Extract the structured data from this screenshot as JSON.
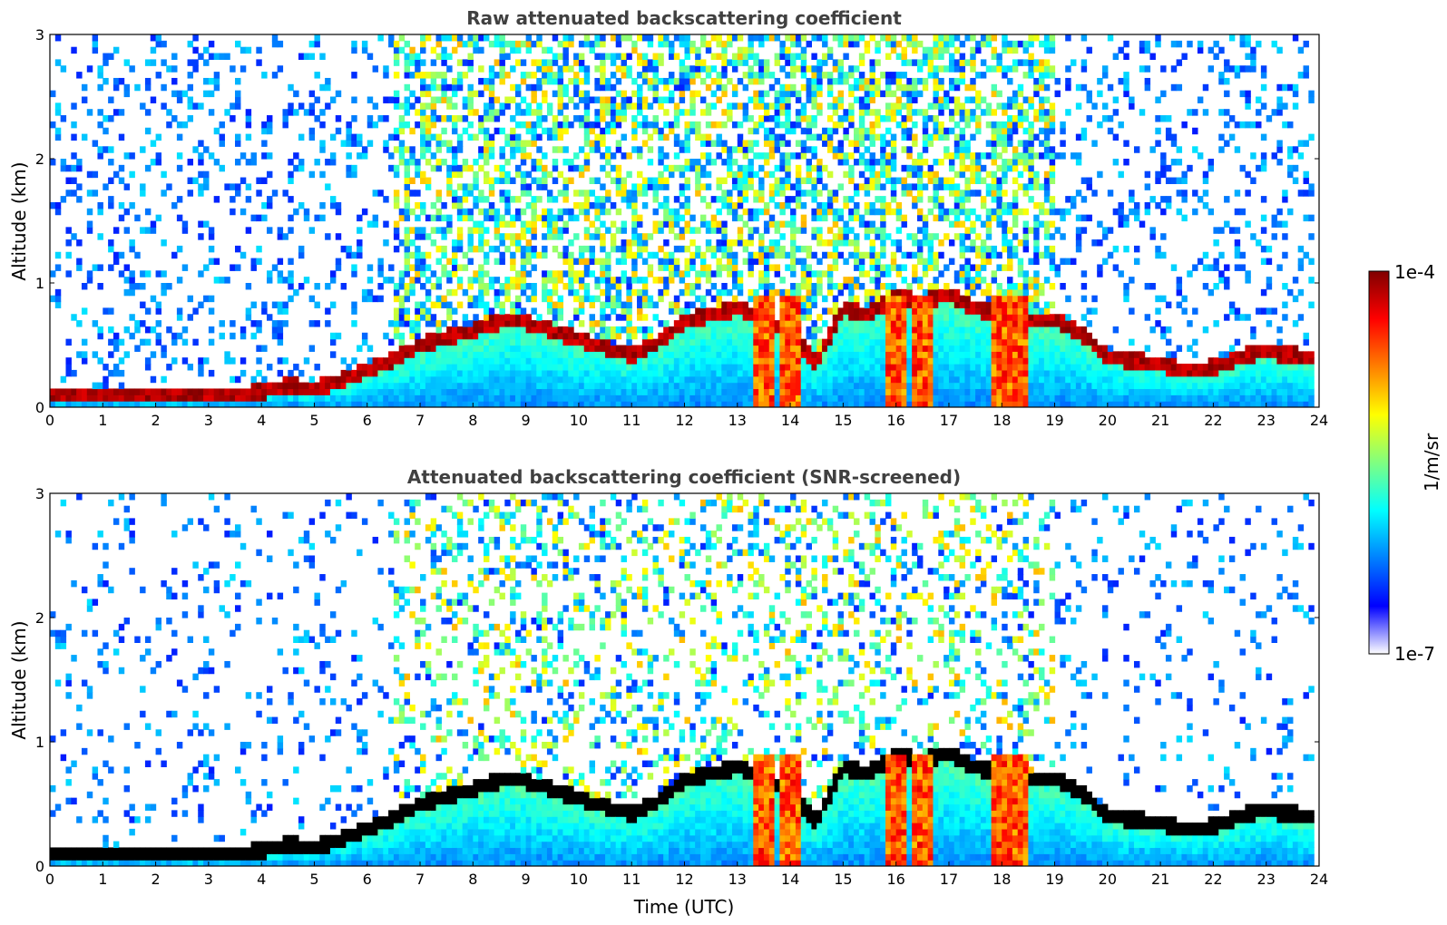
{
  "chart_data": [
    {
      "type": "heatmap",
      "title": "Raw attenuated backscattering coefficient",
      "xlabel": "",
      "ylabel": "Altitude (km)",
      "xlim": [
        0,
        24
      ],
      "ylim": [
        0,
        3
      ],
      "xticks": [
        "0",
        "1",
        "2",
        "3",
        "4",
        "5",
        "6",
        "7",
        "8",
        "9",
        "10",
        "11",
        "12",
        "13",
        "14",
        "15",
        "16",
        "17",
        "18",
        "19",
        "20",
        "21",
        "22",
        "23",
        "24"
      ],
      "yticks": [
        "0",
        "1",
        "2",
        "3"
      ],
      "boundary_layer_top_km": [
        {
          "x": 0,
          "y": 0.1
        },
        {
          "x": 1,
          "y": 0.1
        },
        {
          "x": 2,
          "y": 0.1
        },
        {
          "x": 3,
          "y": 0.1
        },
        {
          "x": 4,
          "y": 0.12
        },
        {
          "x": 4.5,
          "y": 0.18
        },
        {
          "x": 5,
          "y": 0.15
        },
        {
          "x": 5.5,
          "y": 0.22
        },
        {
          "x": 6,
          "y": 0.3
        },
        {
          "x": 6.5,
          "y": 0.38
        },
        {
          "x": 7,
          "y": 0.5
        },
        {
          "x": 8,
          "y": 0.62
        },
        {
          "x": 8.7,
          "y": 0.72
        },
        {
          "x": 9.5,
          "y": 0.62
        },
        {
          "x": 10.5,
          "y": 0.48
        },
        {
          "x": 11,
          "y": 0.42
        },
        {
          "x": 11.5,
          "y": 0.52
        },
        {
          "x": 12,
          "y": 0.7
        },
        {
          "x": 13,
          "y": 0.8
        },
        {
          "x": 13.5,
          "y": 0.7
        },
        {
          "x": 14,
          "y": 0.6
        },
        {
          "x": 14.5,
          "y": 0.35
        },
        {
          "x": 15,
          "y": 0.8
        },
        {
          "x": 15.5,
          "y": 0.75
        },
        {
          "x": 16,
          "y": 0.9
        },
        {
          "x": 16.5,
          "y": 0.85
        },
        {
          "x": 17,
          "y": 0.9
        },
        {
          "x": 17.5,
          "y": 0.8
        },
        {
          "x": 18,
          "y": 0.75
        },
        {
          "x": 18.5,
          "y": 0.7
        },
        {
          "x": 19,
          "y": 0.7
        },
        {
          "x": 19.5,
          "y": 0.6
        },
        {
          "x": 20,
          "y": 0.4
        },
        {
          "x": 21,
          "y": 0.35
        },
        {
          "x": 21.5,
          "y": 0.3
        },
        {
          "x": 22,
          "y": 0.32
        },
        {
          "x": 22.5,
          "y": 0.4
        },
        {
          "x": 23,
          "y": 0.45
        },
        {
          "x": 23.8,
          "y": 0.4
        }
      ],
      "cloud_columns_utc": [
        13.5,
        14.0,
        16.0,
        16.5,
        18.0,
        18.3
      ]
    },
    {
      "type": "heatmap",
      "title": "Attenuated backscattering coefficient (SNR-screened)",
      "xlabel": "Time (UTC)",
      "ylabel": "Altitude (km)",
      "xlim": [
        0,
        24
      ],
      "ylim": [
        0,
        3
      ],
      "xticks": [
        "0",
        "1",
        "2",
        "3",
        "4",
        "5",
        "6",
        "7",
        "8",
        "9",
        "10",
        "11",
        "12",
        "13",
        "14",
        "15",
        "16",
        "17",
        "18",
        "19",
        "20",
        "21",
        "22",
        "23",
        "24"
      ],
      "yticks": [
        "0",
        "1",
        "2",
        "3"
      ],
      "boundary_layer_top_km": [
        {
          "x": 0,
          "y": 0.1
        },
        {
          "x": 1,
          "y": 0.1
        },
        {
          "x": 2,
          "y": 0.1
        },
        {
          "x": 3,
          "y": 0.1
        },
        {
          "x": 4,
          "y": 0.12
        },
        {
          "x": 4.5,
          "y": 0.18
        },
        {
          "x": 5,
          "y": 0.15
        },
        {
          "x": 5.5,
          "y": 0.22
        },
        {
          "x": 6,
          "y": 0.3
        },
        {
          "x": 6.5,
          "y": 0.38
        },
        {
          "x": 7,
          "y": 0.5
        },
        {
          "x": 8,
          "y": 0.62
        },
        {
          "x": 8.7,
          "y": 0.72
        },
        {
          "x": 9.5,
          "y": 0.62
        },
        {
          "x": 10.5,
          "y": 0.48
        },
        {
          "x": 11,
          "y": 0.42
        },
        {
          "x": 11.5,
          "y": 0.52
        },
        {
          "x": 12,
          "y": 0.7
        },
        {
          "x": 13,
          "y": 0.8
        },
        {
          "x": 13.5,
          "y": 0.7
        },
        {
          "x": 14,
          "y": 0.6
        },
        {
          "x": 14.5,
          "y": 0.35
        },
        {
          "x": 15,
          "y": 0.8
        },
        {
          "x": 15.5,
          "y": 0.75
        },
        {
          "x": 16,
          "y": 0.9
        },
        {
          "x": 16.5,
          "y": 0.85
        },
        {
          "x": 17,
          "y": 0.9
        },
        {
          "x": 17.5,
          "y": 0.8
        },
        {
          "x": 18,
          "y": 0.75
        },
        {
          "x": 18.5,
          "y": 0.7
        },
        {
          "x": 19,
          "y": 0.7
        },
        {
          "x": 19.5,
          "y": 0.6
        },
        {
          "x": 20,
          "y": 0.4
        },
        {
          "x": 21,
          "y": 0.35
        },
        {
          "x": 21.5,
          "y": 0.3
        },
        {
          "x": 22,
          "y": 0.32
        },
        {
          "x": 22.5,
          "y": 0.4
        },
        {
          "x": 23,
          "y": 0.45
        },
        {
          "x": 23.8,
          "y": 0.4
        }
      ],
      "cloud_columns_utc": [
        13.5,
        14.0,
        16.0,
        16.5,
        18.0,
        18.3
      ]
    }
  ],
  "colorbar": {
    "label": "1/m/sr",
    "max_label": "1e-4",
    "min_label": "1e-7",
    "colors": [
      "#ffffff",
      "#0000ff",
      "#0080ff",
      "#00ffff",
      "#80ff80",
      "#ffff00",
      "#ff8000",
      "#ff0000",
      "#800000"
    ]
  }
}
